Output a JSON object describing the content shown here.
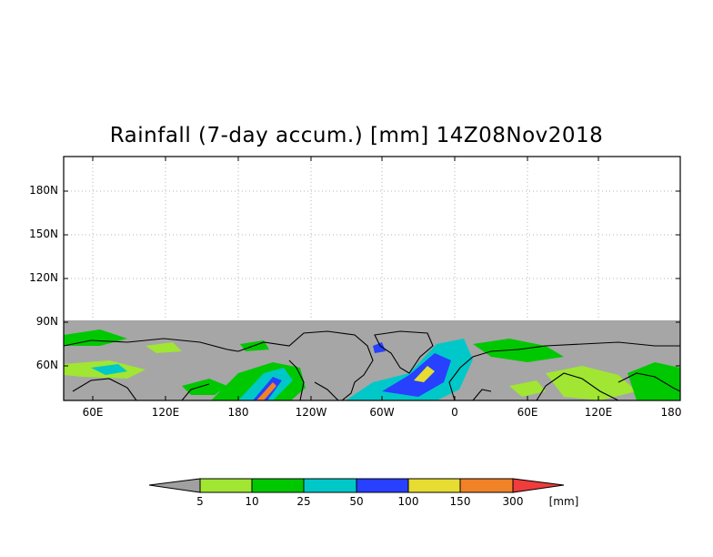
{
  "title": "Rainfall (7-day accum.) [mm] 14Z08Nov2018",
  "axes": {
    "y_ticks": [
      "180N",
      "150N",
      "120N",
      "90N",
      "60N"
    ],
    "x_ticks": [
      "60E",
      "120E",
      "180",
      "120W",
      "60W",
      "0",
      "60E",
      "120E",
      "180"
    ]
  },
  "colorbar": {
    "labels": [
      "5",
      "10",
      "25",
      "50",
      "100",
      "150",
      "300"
    ],
    "unit": "[mm]",
    "colors": [
      "#a0a0a0",
      "#a0e632",
      "#00c800",
      "#00c8c8",
      "#2840ff",
      "#e6dc32",
      "#f08228",
      "#f03c3c"
    ]
  },
  "map_colors": {
    "no_rain": "#a6a6a6",
    "frame": "#000000",
    "grid": "#b4b4b4",
    "coast": "#000000"
  }
}
